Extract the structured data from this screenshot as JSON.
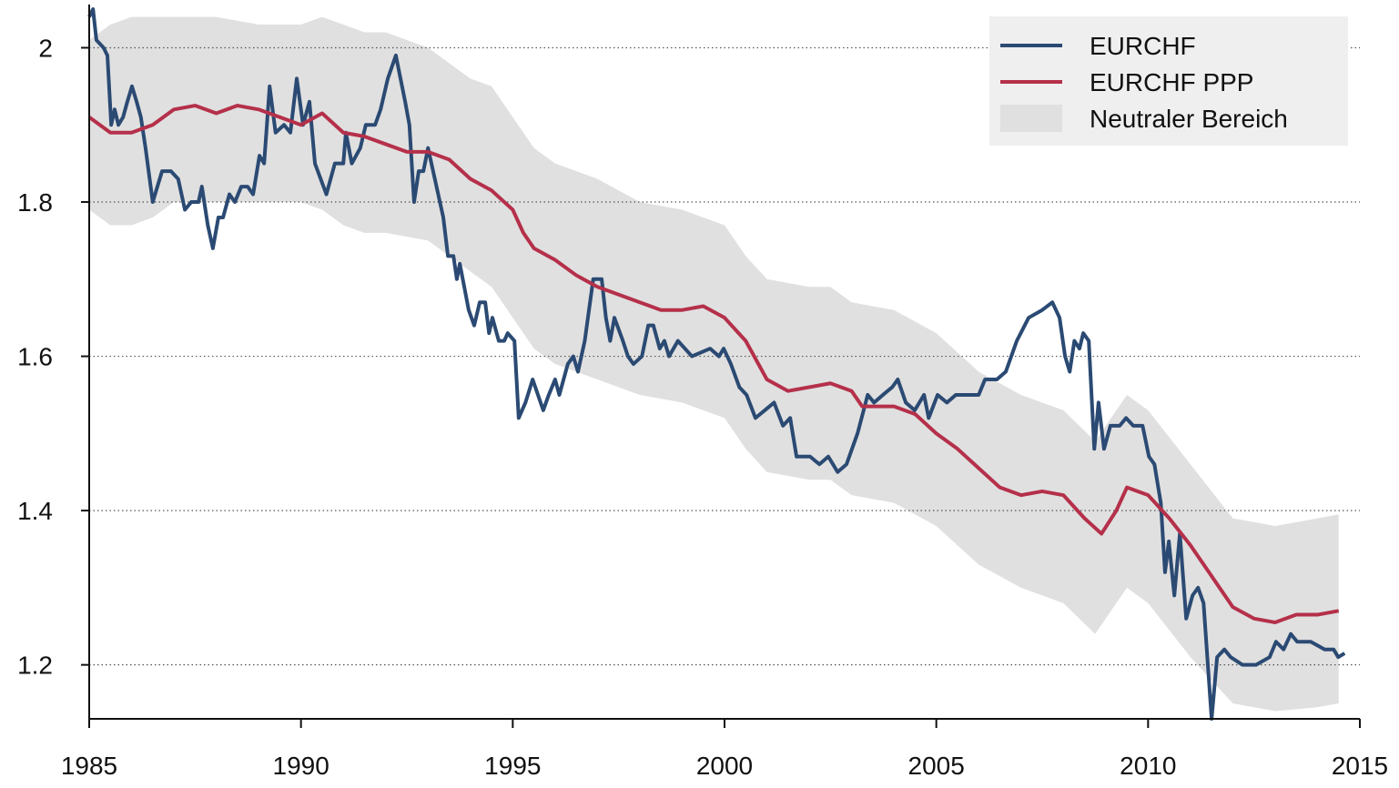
{
  "chart_data": {
    "type": "line",
    "xlim": [
      1985,
      2015
    ],
    "xticks": [
      1985,
      1990,
      1995,
      2000,
      2005,
      2010,
      2015
    ],
    "ylim": [
      1.13,
      2.056
    ],
    "yticks": [
      1.2,
      1.4,
      1.6,
      1.8,
      2
    ],
    "grid": true,
    "legend": "top-right",
    "band": {
      "name": "Neutraler Bereich",
      "color": "#e0e0e0",
      "x": [
        1985,
        1985.5,
        1986,
        1986.5,
        1987,
        1988,
        1989,
        1990,
        1990.5,
        1991,
        1991.5,
        1992,
        1993,
        1994,
        1994.5,
        1995,
        1995.5,
        1996,
        1997,
        1998,
        1999,
        2000,
        2000.5,
        2001,
        2002,
        2002.5,
        2003,
        2004,
        2005,
        2006,
        2007,
        2008,
        2008.75,
        2009.5,
        2010,
        2011,
        2012,
        2013,
        2014,
        2014.5
      ],
      "upper": [
        2.01,
        2.03,
        2.04,
        2.04,
        2.04,
        2.04,
        2.03,
        2.03,
        2.04,
        2.03,
        2.02,
        2.02,
        2.0,
        1.96,
        1.95,
        1.91,
        1.87,
        1.85,
        1.83,
        1.8,
        1.79,
        1.77,
        1.73,
        1.7,
        1.69,
        1.69,
        1.67,
        1.66,
        1.63,
        1.58,
        1.55,
        1.53,
        1.49,
        1.55,
        1.53,
        1.46,
        1.39,
        1.38,
        1.39,
        1.395
      ],
      "lower": [
        1.79,
        1.77,
        1.77,
        1.78,
        1.8,
        1.8,
        1.8,
        1.8,
        1.79,
        1.77,
        1.76,
        1.76,
        1.75,
        1.71,
        1.69,
        1.65,
        1.61,
        1.59,
        1.57,
        1.55,
        1.54,
        1.52,
        1.48,
        1.45,
        1.44,
        1.44,
        1.42,
        1.41,
        1.38,
        1.33,
        1.3,
        1.28,
        1.24,
        1.3,
        1.28,
        1.21,
        1.15,
        1.14,
        1.145,
        1.15
      ]
    },
    "series": [
      {
        "name": "EURCHF",
        "color": "#2b4a73",
        "x": [
          1985,
          1985.09,
          1985.17,
          1985.34,
          1985.43,
          1985.52,
          1985.6,
          1985.69,
          1985.8,
          1985.9,
          1986.01,
          1986.12,
          1986.22,
          1986.33,
          1986.5,
          1986.72,
          1986.93,
          1987.1,
          1987.26,
          1987.41,
          1987.58,
          1987.66,
          1987.8,
          1987.92,
          1988.05,
          1988.16,
          1988.31,
          1988.44,
          1988.59,
          1988.74,
          1988.87,
          1989.02,
          1989.13,
          1989.26,
          1989.4,
          1989.6,
          1989.75,
          1989.9,
          1990.05,
          1990.2,
          1990.33,
          1990.6,
          1990.8,
          1991.0,
          1991.06,
          1991.2,
          1991.4,
          1991.53,
          1991.75,
          1991.88,
          1992.05,
          1992.24,
          1992.46,
          1992.56,
          1992.67,
          1992.78,
          1992.89,
          1993.0,
          1993.2,
          1993.36,
          1993.47,
          1993.6,
          1993.68,
          1993.75,
          1993.96,
          1994.09,
          1994.22,
          1994.35,
          1994.44,
          1994.52,
          1994.67,
          1994.8,
          1994.88,
          1995.04,
          1995.14,
          1995.3,
          1995.47,
          1995.72,
          1995.85,
          1996.0,
          1996.1,
          1996.3,
          1996.43,
          1996.54,
          1996.7,
          1996.9,
          1997.1,
          1997.2,
          1997.3,
          1997.4,
          1997.6,
          1997.72,
          1997.85,
          1998.05,
          1998.2,
          1998.32,
          1998.47,
          1998.58,
          1998.69,
          1998.9,
          1999.23,
          1999.66,
          1999.87,
          1999.98,
          2000.15,
          2000.35,
          2000.52,
          2000.73,
          2000.95,
          2001.17,
          2001.38,
          2001.55,
          2001.7,
          2002.02,
          2002.24,
          2002.45,
          2002.67,
          2002.88,
          2003.14,
          2003.38,
          2003.53,
          2003.74,
          2003.96,
          2004.09,
          2004.28,
          2004.49,
          2004.71,
          2004.82,
          2005.03,
          2005.25,
          2005.46,
          2005.67,
          2006.0,
          2006.15,
          2006.43,
          2006.64,
          2006.9,
          2007.18,
          2007.5,
          2007.74,
          2007.91,
          2008.04,
          2008.15,
          2008.26,
          2008.38,
          2008.47,
          2008.6,
          2008.73,
          2008.83,
          2008.96,
          2009.11,
          2009.33,
          2009.48,
          2009.65,
          2009.87,
          2010.02,
          2010.15,
          2010.3,
          2010.4,
          2010.49,
          2010.62,
          2010.75,
          2010.9,
          2011.05,
          2011.18,
          2011.31,
          2011.5,
          2011.63,
          2011.8,
          2011.95,
          2012.23,
          2012.55,
          2012.87,
          2013.02,
          2013.2,
          2013.37,
          2013.52,
          2013.84,
          2014.17,
          2014.38,
          2014.49,
          2014.64
        ],
        "values": [
          2.04,
          2.05,
          2.01,
          2.0,
          1.99,
          1.9,
          1.92,
          1.9,
          1.91,
          1.93,
          1.95,
          1.93,
          1.91,
          1.87,
          1.8,
          1.84,
          1.84,
          1.83,
          1.79,
          1.8,
          1.8,
          1.82,
          1.77,
          1.74,
          1.78,
          1.78,
          1.81,
          1.8,
          1.82,
          1.82,
          1.81,
          1.86,
          1.85,
          1.95,
          1.89,
          1.9,
          1.89,
          1.96,
          1.9,
          1.93,
          1.85,
          1.81,
          1.85,
          1.85,
          1.89,
          1.85,
          1.87,
          1.9,
          1.9,
          1.92,
          1.96,
          1.99,
          1.93,
          1.9,
          1.8,
          1.84,
          1.84,
          1.87,
          1.82,
          1.78,
          1.73,
          1.73,
          1.7,
          1.72,
          1.66,
          1.64,
          1.67,
          1.67,
          1.63,
          1.65,
          1.62,
          1.62,
          1.63,
          1.62,
          1.52,
          1.54,
          1.57,
          1.53,
          1.55,
          1.57,
          1.55,
          1.59,
          1.6,
          1.58,
          1.62,
          1.7,
          1.7,
          1.65,
          1.62,
          1.65,
          1.62,
          1.6,
          1.59,
          1.6,
          1.64,
          1.64,
          1.61,
          1.62,
          1.6,
          1.62,
          1.6,
          1.61,
          1.6,
          1.61,
          1.59,
          1.56,
          1.55,
          1.52,
          1.53,
          1.54,
          1.51,
          1.52,
          1.47,
          1.47,
          1.46,
          1.47,
          1.45,
          1.46,
          1.5,
          1.55,
          1.54,
          1.55,
          1.56,
          1.57,
          1.54,
          1.53,
          1.55,
          1.52,
          1.55,
          1.54,
          1.55,
          1.55,
          1.55,
          1.57,
          1.57,
          1.58,
          1.62,
          1.65,
          1.66,
          1.67,
          1.65,
          1.6,
          1.58,
          1.62,
          1.61,
          1.63,
          1.62,
          1.48,
          1.54,
          1.48,
          1.51,
          1.51,
          1.52,
          1.51,
          1.51,
          1.47,
          1.46,
          1.41,
          1.32,
          1.36,
          1.29,
          1.37,
          1.26,
          1.29,
          1.3,
          1.28,
          1.13,
          1.21,
          1.22,
          1.21,
          1.2,
          1.2,
          1.21,
          1.23,
          1.22,
          1.24,
          1.23,
          1.23,
          1.22,
          1.22,
          1.21,
          1.215
        ]
      },
      {
        "name": "EURCHF PPP",
        "color": "#b5304a",
        "x": [
          1985,
          1985.5,
          1986,
          1986.5,
          1987,
          1987.5,
          1988,
          1988.5,
          1989,
          1989.5,
          1990,
          1990.5,
          1991,
          1991.5,
          1992,
          1992.5,
          1993,
          1993.5,
          1994,
          1994.5,
          1995,
          1995.25,
          1995.5,
          1996,
          1996.5,
          1997,
          1997.5,
          1998,
          1998.5,
          1999,
          1999.5,
          2000,
          2000.5,
          2001,
          2001.5,
          2002,
          2002.5,
          2003,
          2003.25,
          2003.5,
          2004,
          2004.5,
          2005,
          2005.5,
          2006,
          2006.5,
          2007,
          2007.5,
          2008,
          2008.5,
          2008.9,
          2009.25,
          2009.5,
          2010,
          2010.5,
          2011,
          2011.5,
          2012,
          2012.5,
          2013,
          2013.5,
          2014,
          2014.5
        ],
        "values": [
          1.91,
          1.89,
          1.89,
          1.9,
          1.92,
          1.925,
          1.915,
          1.925,
          1.92,
          1.91,
          1.9,
          1.915,
          1.89,
          1.885,
          1.875,
          1.865,
          1.865,
          1.855,
          1.83,
          1.815,
          1.79,
          1.76,
          1.74,
          1.725,
          1.705,
          1.69,
          1.68,
          1.67,
          1.66,
          1.66,
          1.665,
          1.65,
          1.62,
          1.57,
          1.555,
          1.56,
          1.565,
          1.555,
          1.535,
          1.535,
          1.535,
          1.525,
          1.5,
          1.48,
          1.455,
          1.43,
          1.42,
          1.425,
          1.42,
          1.39,
          1.37,
          1.4,
          1.43,
          1.42,
          1.39,
          1.355,
          1.315,
          1.275,
          1.26,
          1.255,
          1.265,
          1.265,
          1.27
        ]
      }
    ]
  }
}
